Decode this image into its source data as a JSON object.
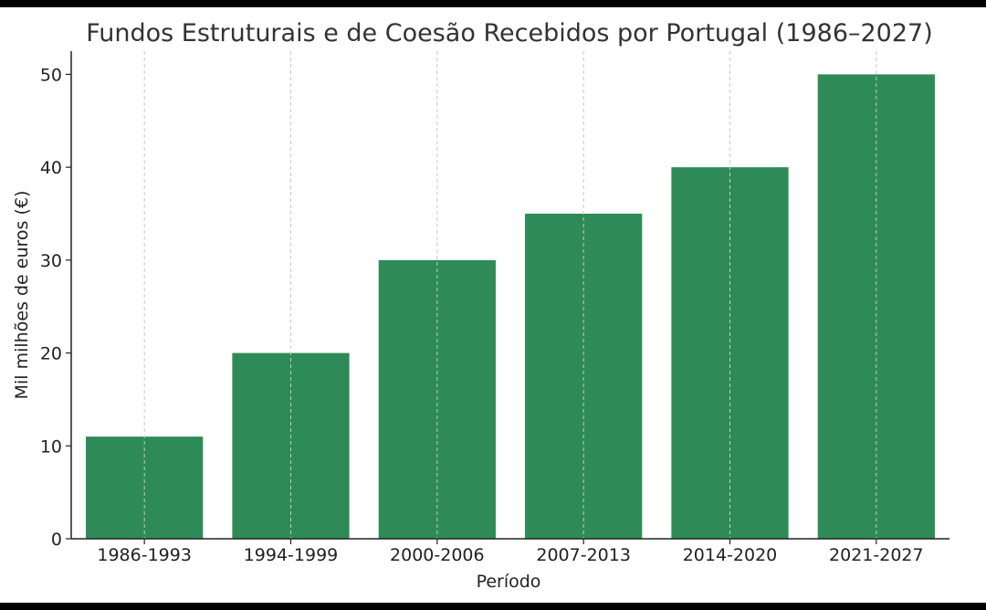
{
  "chart_data": {
    "type": "bar",
    "title": "Fundos Estruturais e de Coesão Recebidos por Portugal (1986–2027)",
    "xlabel": "Período",
    "ylabel": "Mil milhões de euros (€)",
    "categories": [
      "1986-1993",
      "1994-1999",
      "2000-2006",
      "2007-2013",
      "2014-2020",
      "2021-2027"
    ],
    "values": [
      11,
      20,
      30,
      35,
      40,
      50
    ],
    "ylim": [
      0,
      52.5
    ],
    "yticks": [
      0,
      10,
      20,
      30,
      40,
      50
    ],
    "grid": "x-dashed",
    "bar_color": "#2e8b57"
  }
}
